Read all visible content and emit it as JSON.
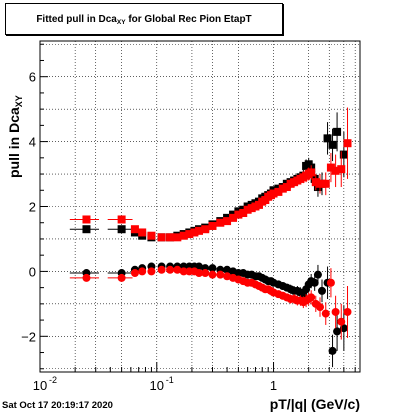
{
  "title_main": "Fitted pull in Dca",
  "title_sub": "XY",
  "title_rest": " for Global Rec Pion EtapT",
  "ylabel_main": "pull in Dca",
  "ylabel_sub": "XY",
  "xlabel": "pT/|q| (GeV/c)",
  "timestamp": "Sat Oct 17 20:19:17 2020",
  "colors": {
    "black": "#000000",
    "red": "#ff0000"
  },
  "chart_data": {
    "type": "scatter",
    "xscale": "log",
    "xlim": [
      0.01,
      5.5
    ],
    "ylim": [
      -3.1,
      7.1
    ],
    "grid": true,
    "xticks": [
      {
        "v": 0.01,
        "label": "10"
      },
      {
        "v": 0.1,
        "label": "10"
      },
      {
        "v": 1,
        "label": "1"
      }
    ],
    "xtick_exponents": [
      "-2",
      "-1",
      ""
    ],
    "yticks": [
      -2,
      0,
      2,
      4,
      6
    ],
    "series": [
      {
        "color": "black",
        "marker": "square",
        "x": [
          0.025,
          0.05,
          0.065,
          0.075,
          0.09,
          0.11,
          0.13,
          0.15,
          0.17,
          0.19,
          0.21,
          0.23,
          0.26,
          0.3,
          0.35,
          0.4,
          0.45,
          0.5,
          0.55,
          0.6,
          0.65,
          0.7,
          0.75,
          0.8,
          0.85,
          0.9,
          0.95,
          1.0,
          1.1,
          1.2,
          1.3,
          1.4,
          1.5,
          1.6,
          1.7,
          1.8,
          1.9,
          2.0,
          2.1,
          2.25,
          2.4,
          2.6,
          2.9,
          3.2,
          3.5,
          4.0
        ],
        "y": [
          1.3,
          1.3,
          1.2,
          1.1,
          1.05,
          1.05,
          1.05,
          1.1,
          1.15,
          1.2,
          1.25,
          1.3,
          1.35,
          1.45,
          1.55,
          1.65,
          1.75,
          1.85,
          1.9,
          2.0,
          2.05,
          2.1,
          2.15,
          2.25,
          2.3,
          2.35,
          2.4,
          2.5,
          2.55,
          2.6,
          2.7,
          2.75,
          2.8,
          2.85,
          2.9,
          2.95,
          3.25,
          3.3,
          3.2,
          2.85,
          2.6,
          2.7,
          4.1,
          3.9,
          4.3,
          3.6
        ],
        "yerr": [
          0.08,
          0.08,
          0.06,
          0.05,
          0.04,
          0.04,
          0.04,
          0.04,
          0.04,
          0.04,
          0.04,
          0.04,
          0.04,
          0.04,
          0.05,
          0.05,
          0.05,
          0.05,
          0.05,
          0.06,
          0.06,
          0.06,
          0.06,
          0.07,
          0.07,
          0.07,
          0.08,
          0.08,
          0.1,
          0.12,
          0.12,
          0.14,
          0.15,
          0.15,
          0.16,
          0.18,
          0.2,
          0.2,
          0.22,
          0.25,
          0.3,
          0.35,
          0.5,
          0.5,
          0.6,
          0.7
        ]
      },
      {
        "color": "red",
        "marker": "square",
        "x": [
          0.025,
          0.05,
          0.065,
          0.075,
          0.09,
          0.11,
          0.13,
          0.15,
          0.17,
          0.19,
          0.21,
          0.23,
          0.26,
          0.3,
          0.35,
          0.4,
          0.45,
          0.5,
          0.55,
          0.6,
          0.65,
          0.7,
          0.75,
          0.8,
          0.85,
          0.9,
          0.95,
          1.0,
          1.1,
          1.2,
          1.3,
          1.4,
          1.5,
          1.6,
          1.7,
          1.8,
          1.9,
          2.0,
          2.1,
          2.3,
          2.5,
          2.8,
          3.1,
          3.4,
          3.8,
          4.3
        ],
        "y": [
          1.6,
          1.6,
          1.3,
          1.2,
          1.1,
          1.05,
          1.05,
          1.05,
          1.1,
          1.15,
          1.2,
          1.25,
          1.3,
          1.4,
          1.5,
          1.55,
          1.65,
          1.75,
          1.8,
          1.9,
          1.95,
          2.0,
          2.05,
          2.15,
          2.2,
          2.3,
          2.35,
          2.4,
          2.45,
          2.55,
          2.6,
          2.7,
          2.75,
          2.8,
          2.85,
          2.9,
          2.95,
          3.0,
          3.05,
          2.75,
          2.7,
          2.7,
          3.2,
          3.1,
          3.15,
          3.95
        ],
        "yerr": [
          0.08,
          0.08,
          0.06,
          0.05,
          0.04,
          0.04,
          0.04,
          0.04,
          0.04,
          0.04,
          0.04,
          0.04,
          0.04,
          0.04,
          0.05,
          0.05,
          0.05,
          0.05,
          0.05,
          0.06,
          0.06,
          0.06,
          0.06,
          0.07,
          0.07,
          0.07,
          0.08,
          0.08,
          0.1,
          0.12,
          0.12,
          0.14,
          0.15,
          0.15,
          0.16,
          0.18,
          0.2,
          0.2,
          0.22,
          0.25,
          0.3,
          0.35,
          0.45,
          0.5,
          0.55,
          1.1
        ]
      },
      {
        "color": "black",
        "marker": "circle",
        "x": [
          0.025,
          0.05,
          0.065,
          0.075,
          0.09,
          0.11,
          0.13,
          0.15,
          0.17,
          0.19,
          0.21,
          0.23,
          0.26,
          0.3,
          0.35,
          0.4,
          0.45,
          0.5,
          0.55,
          0.6,
          0.65,
          0.7,
          0.75,
          0.8,
          0.85,
          0.9,
          0.95,
          1.0,
          1.1,
          1.2,
          1.3,
          1.4,
          1.5,
          1.6,
          1.7,
          1.8,
          1.9,
          2.0,
          2.1,
          2.25,
          2.4,
          2.6,
          2.9,
          3.2,
          3.5,
          4.0
        ],
        "y": [
          -0.05,
          -0.05,
          0.05,
          0.1,
          0.15,
          0.15,
          0.15,
          0.15,
          0.15,
          0.15,
          0.15,
          0.15,
          0.1,
          0.1,
          0.05,
          0.05,
          0.0,
          -0.05,
          -0.05,
          -0.1,
          -0.1,
          -0.15,
          -0.15,
          -0.2,
          -0.25,
          -0.3,
          -0.3,
          -0.35,
          -0.4,
          -0.45,
          -0.5,
          -0.55,
          -0.6,
          -0.6,
          -0.65,
          -0.7,
          -0.55,
          -0.4,
          -0.3,
          -0.35,
          -0.1,
          -0.6,
          -0.35,
          -2.45,
          -1.85,
          -1.75
        ],
        "yerr": [
          0.08,
          0.08,
          0.06,
          0.05,
          0.04,
          0.04,
          0.04,
          0.04,
          0.04,
          0.04,
          0.04,
          0.04,
          0.04,
          0.04,
          0.05,
          0.05,
          0.05,
          0.05,
          0.05,
          0.06,
          0.06,
          0.06,
          0.06,
          0.07,
          0.07,
          0.07,
          0.08,
          0.08,
          0.1,
          0.12,
          0.12,
          0.14,
          0.15,
          0.15,
          0.16,
          0.18,
          0.2,
          0.2,
          0.22,
          0.25,
          0.3,
          0.35,
          0.5,
          0.5,
          0.6,
          0.7
        ]
      },
      {
        "color": "red",
        "marker": "circle",
        "x": [
          0.025,
          0.05,
          0.065,
          0.075,
          0.09,
          0.11,
          0.13,
          0.15,
          0.17,
          0.19,
          0.21,
          0.23,
          0.26,
          0.3,
          0.35,
          0.4,
          0.45,
          0.5,
          0.55,
          0.6,
          0.65,
          0.7,
          0.75,
          0.8,
          0.85,
          0.9,
          0.95,
          1.0,
          1.1,
          1.2,
          1.3,
          1.4,
          1.5,
          1.6,
          1.7,
          1.8,
          1.9,
          2.0,
          2.1,
          2.3,
          2.5,
          2.8,
          3.1,
          3.4,
          3.8,
          4.3
        ],
        "y": [
          -0.2,
          -0.2,
          -0.05,
          0.0,
          0.0,
          0.05,
          0.05,
          0.05,
          0.0,
          0.0,
          0.0,
          -0.05,
          -0.05,
          -0.1,
          -0.1,
          -0.15,
          -0.2,
          -0.25,
          -0.3,
          -0.35,
          -0.35,
          -0.4,
          -0.45,
          -0.5,
          -0.55,
          -0.55,
          -0.6,
          -0.65,
          -0.7,
          -0.75,
          -0.8,
          -0.85,
          -0.85,
          -0.9,
          -0.9,
          -0.95,
          -0.9,
          -0.85,
          -0.8,
          -1.0,
          -1.1,
          -1.3,
          -0.35,
          -1.25,
          -1.55,
          -1.25
        ],
        "yerr": [
          0.08,
          0.08,
          0.06,
          0.05,
          0.04,
          0.04,
          0.04,
          0.04,
          0.04,
          0.04,
          0.04,
          0.04,
          0.04,
          0.04,
          0.05,
          0.05,
          0.05,
          0.05,
          0.05,
          0.06,
          0.06,
          0.06,
          0.06,
          0.07,
          0.07,
          0.07,
          0.08,
          0.08,
          0.1,
          0.12,
          0.12,
          0.14,
          0.15,
          0.15,
          0.16,
          0.18,
          0.2,
          0.2,
          0.22,
          0.25,
          0.3,
          0.35,
          0.45,
          0.5,
          0.55,
          0.8
        ]
      }
    ]
  }
}
